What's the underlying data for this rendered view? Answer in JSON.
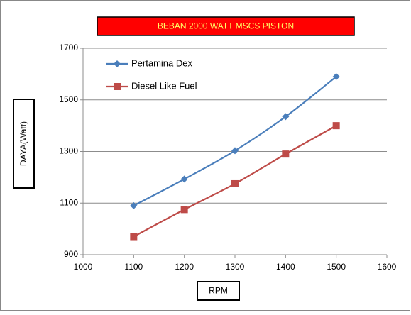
{
  "chart_data": {
    "type": "line",
    "title": "BEBAN 2000 WATT MSCS PISTON",
    "x_label": "RPM",
    "y_label": "DAYA(Watt)",
    "xlim": [
      1000,
      1600
    ],
    "xticks": [
      1000,
      1100,
      1200,
      1300,
      1400,
      1500,
      1600
    ],
    "ylim": [
      900,
      1700
    ],
    "yticks": [
      900,
      1100,
      1300,
      1500,
      1700
    ],
    "grid": true,
    "legend": "upper left",
    "x": [
      1100,
      1200,
      1300,
      1400,
      1500
    ],
    "series": [
      {
        "name": "Pertamina Dex",
        "color": "#4a7ebb",
        "marker": "diamond",
        "values": [
          1090,
          1193,
          1303,
          1435,
          1590
        ]
      },
      {
        "name": "Diesel Like Fuel",
        "color": "#be4b48",
        "marker": "square",
        "values": [
          970,
          1075,
          1175,
          1290,
          1400
        ]
      }
    ]
  }
}
